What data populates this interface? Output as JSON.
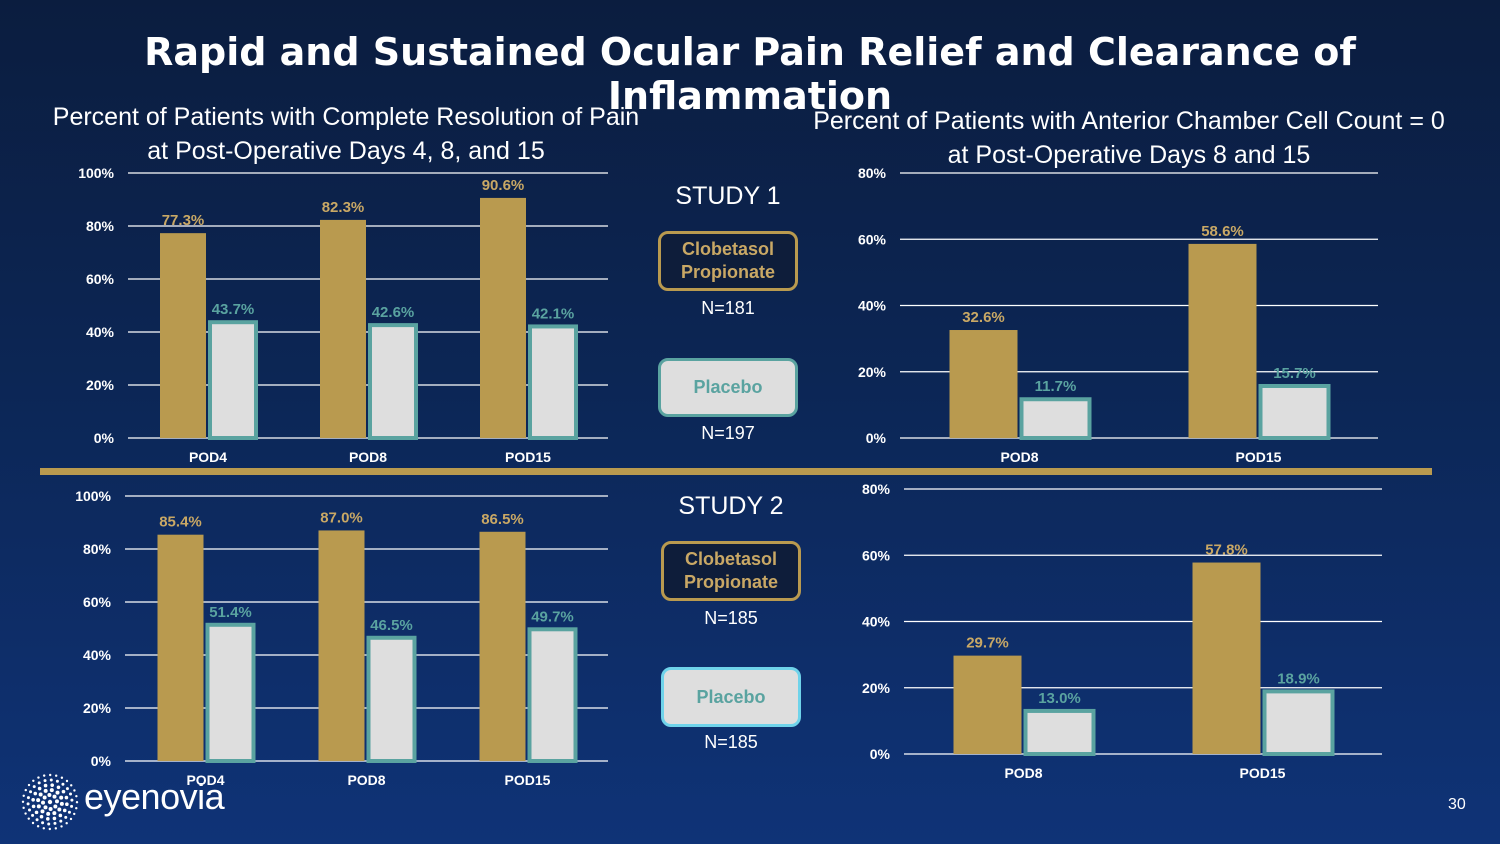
{
  "title": "Rapid and Sustained Ocular Pain Relief and Clearance of Inflammation",
  "left_subtitle": {
    "line1": "Percent of Patients with Complete Resolution of Pain",
    "line2": "at Post-Operative Days 4, 8, and 15"
  },
  "right_subtitle": {
    "line1": "Percent of Patients with Anterior Chamber Cell Count = 0",
    "line2": "at Post-Operative Days 8 and 15"
  },
  "studies": [
    {
      "label": "STUDY 1",
      "clobetasol_label_line1": "Clobetasol",
      "clobetasol_label_line2": "Propionate",
      "clobetasol_n": "N=181",
      "placebo_label": "Placebo",
      "placebo_n": "N=197"
    },
    {
      "label": "STUDY 2",
      "clobetasol_label_line1": "Clobetasol",
      "clobetasol_label_line2": "Propionate",
      "clobetasol_n": "N=185",
      "placebo_label": "Placebo",
      "placebo_n": "N=185"
    }
  ],
  "colors": {
    "clobetasol": "#b99a4f",
    "placebo": "#dedede",
    "placebo_border": "#5aa3a0",
    "clobetasol_label": "#c9a865",
    "placebo_label": "#5aa3a0",
    "divider": "#b99a4f"
  },
  "chart_data": [
    {
      "type": "bar",
      "categories": [
        "POD4",
        "POD8",
        "POD15"
      ],
      "series": [
        {
          "name": "Clobetasol Propionate",
          "values": [
            77.3,
            82.3,
            90.6
          ],
          "labels": [
            "77.3%",
            "82.3%",
            "90.6%"
          ]
        },
        {
          "name": "Placebo",
          "values": [
            43.7,
            42.6,
            42.1
          ],
          "labels": [
            "43.7%",
            "42.6%",
            "42.1%"
          ]
        }
      ],
      "ylim": [
        0,
        100
      ],
      "yticks": [
        "0%",
        "20%",
        "40%",
        "60%",
        "80%",
        "100%"
      ],
      "grid": true
    },
    {
      "type": "bar",
      "categories": [
        "POD8",
        "POD15"
      ],
      "series": [
        {
          "name": "Clobetasol Propionate",
          "values": [
            32.6,
            58.6
          ],
          "labels": [
            "32.6%",
            "58.6%"
          ]
        },
        {
          "name": "Placebo",
          "values": [
            11.7,
            15.7
          ],
          "labels": [
            "11.7%",
            "15.7%"
          ]
        }
      ],
      "ylim": [
        0,
        80
      ],
      "yticks": [
        "0%",
        "20%",
        "40%",
        "60%",
        "80%"
      ],
      "grid": true
    },
    {
      "type": "bar",
      "categories": [
        "POD4",
        "POD8",
        "POD15"
      ],
      "series": [
        {
          "name": "Clobetasol Propionate",
          "values": [
            85.4,
            87.0,
            86.5
          ],
          "labels": [
            "85.4%",
            "87.0%",
            "86.5%"
          ]
        },
        {
          "name": "Placebo",
          "values": [
            51.4,
            46.5,
            49.7
          ],
          "labels": [
            "51.4%",
            "46.5%",
            "49.7%"
          ]
        }
      ],
      "ylim": [
        0,
        100
      ],
      "yticks": [
        "0%",
        "20%",
        "40%",
        "60%",
        "80%",
        "100%"
      ],
      "grid": true
    },
    {
      "type": "bar",
      "categories": [
        "POD8",
        "POD15"
      ],
      "series": [
        {
          "name": "Clobetasol Propionate",
          "values": [
            29.7,
            57.8
          ],
          "labels": [
            "29.7%",
            "57.8%"
          ]
        },
        {
          "name": "Placebo",
          "values": [
            13.0,
            18.9
          ],
          "labels": [
            "13.0%",
            "18.9%"
          ]
        }
      ],
      "ylim": [
        0,
        80
      ],
      "yticks": [
        "0%",
        "20%",
        "40%",
        "60%",
        "80%"
      ],
      "grid": true
    }
  ],
  "logo": {
    "text": "eyenovia",
    "icon": "sunburst-dots-icon"
  },
  "page_number": "30"
}
